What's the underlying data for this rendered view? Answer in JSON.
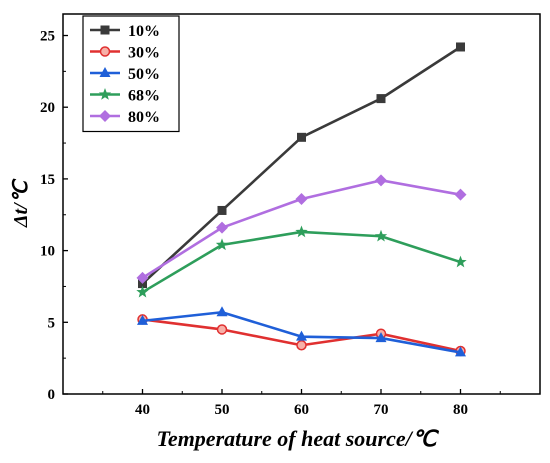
{
  "chart_data": {
    "type": "line",
    "xlabel": "Temperature of heat source/℃",
    "ylabel_var": "Δt",
    "ylabel_unit": "/℃",
    "x": [
      40,
      50,
      60,
      70,
      80
    ],
    "xlim": [
      30,
      90
    ],
    "ylim": [
      0,
      26.5
    ],
    "xticks": [
      40,
      50,
      60,
      70,
      80
    ],
    "yticks": [
      0,
      5,
      10,
      15,
      20,
      25
    ],
    "grid": false,
    "legend_position": "top-left",
    "series": [
      {
        "name": "10%",
        "values": [
          7.7,
          12.8,
          17.9,
          20.6,
          24.2
        ],
        "color": "#3a3a3a",
        "marker": "square"
      },
      {
        "name": "30%",
        "values": [
          5.2,
          4.5,
          3.4,
          4.2,
          3.0
        ],
        "color": "#e03030",
        "marker": "circle"
      },
      {
        "name": "50%",
        "values": [
          5.1,
          5.7,
          4.0,
          3.9,
          2.9
        ],
        "color": "#1f5fd8",
        "marker": "triangle"
      },
      {
        "name": "68%",
        "values": [
          7.1,
          10.4,
          11.3,
          11.0,
          9.2
        ],
        "color": "#2e9e5b",
        "marker": "star"
      },
      {
        "name": "80%",
        "values": [
          8.1,
          11.6,
          13.6,
          14.9,
          13.9
        ],
        "color": "#b06ee0",
        "marker": "diamond"
      }
    ]
  }
}
